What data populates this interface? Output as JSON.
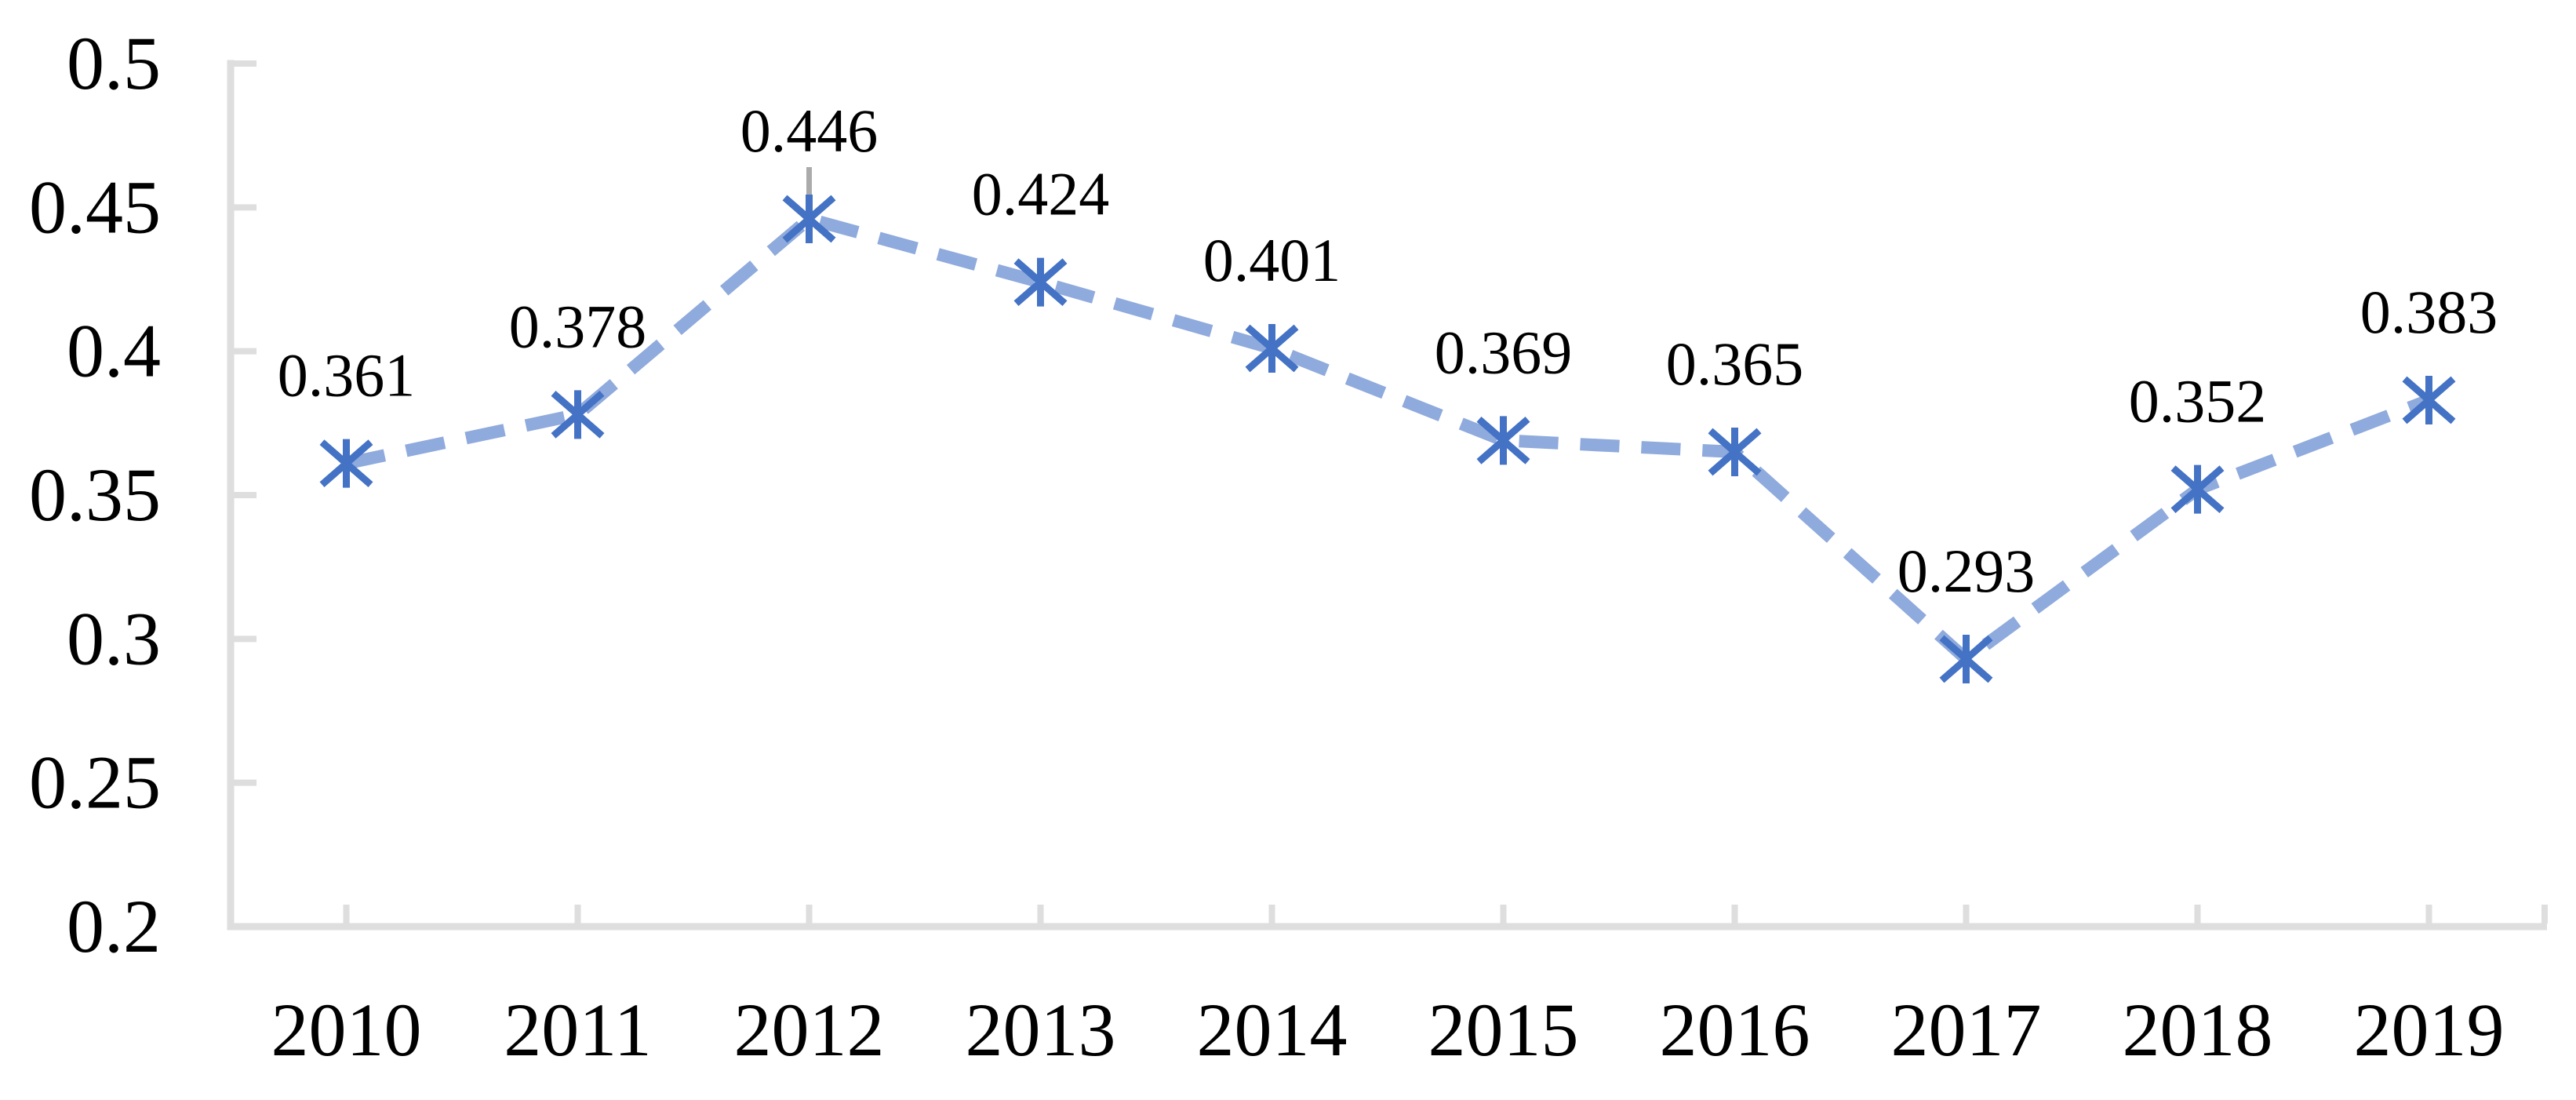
{
  "chart_data": {
    "type": "line",
    "title": "",
    "categories": [
      "2010",
      "2011",
      "2012",
      "2013",
      "2014",
      "2015",
      "2016",
      "2017",
      "2018",
      "2019"
    ],
    "series": [
      {
        "name": "",
        "values": [
          0.361,
          0.378,
          0.446,
          0.424,
          0.401,
          0.369,
          0.365,
          0.293,
          0.352,
          0.383
        ],
        "data_labels": [
          "0.361",
          "0.378",
          "0.446",
          "0.424",
          "0.401",
          "0.369",
          "0.365",
          "0.293",
          "0.352",
          "0.383"
        ],
        "line_style": "dashed",
        "marker": "asterisk"
      }
    ],
    "xlabel": "",
    "ylabel": "",
    "ylim": [
      0.2,
      0.5
    ],
    "ytick_step": 0.05,
    "ytick_labels": [
      "0.2",
      "0.25",
      "0.3",
      "0.35",
      "0.4",
      "0.45",
      "0.5"
    ],
    "xtick_labels": [
      "2010",
      "2011",
      "2012",
      "2013",
      "2014",
      "2015",
      "2016",
      "2017",
      "2018",
      "2019"
    ],
    "grid": false,
    "legend": "none",
    "tick_orientation": "inside",
    "annotations": [
      {
        "type": "leader_line",
        "category": "2012",
        "value": 0.446
      }
    ],
    "colors": {
      "line": "#8FAADC",
      "marker": "#4472C4",
      "axis": "#DEDEDE",
      "tick": "#DEDEDE",
      "data_label_text": "#000000",
      "axis_label_text": "#000000",
      "leader_line": "#ABABAB",
      "background": "#FFFFFF"
    }
  }
}
